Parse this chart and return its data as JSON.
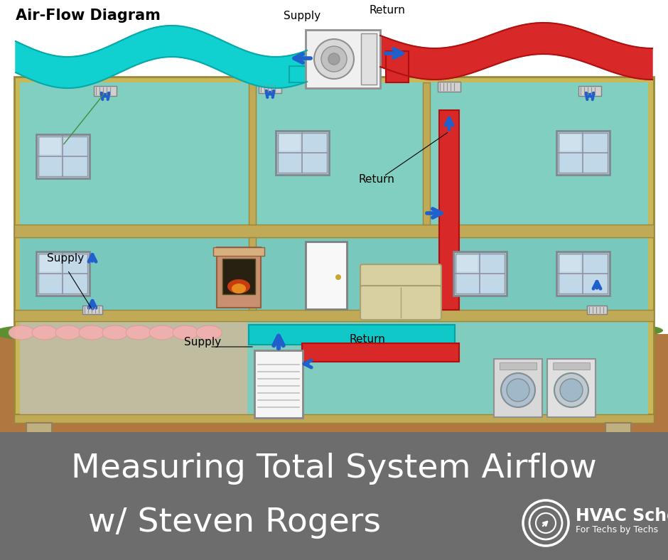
{
  "title_line1": "Measuring Total System Airflow",
  "title_line2": "w/ Steven Rogers",
  "hvac_label": "HVAC School",
  "hvac_sublabel": "For Techs by Techs",
  "diagram_label": "Air-Flow Diagram",
  "bg_color": "#ffffff",
  "footer_bg": "#6d6d6d",
  "footer_text_color": "#ffffff",
  "supply_duct_color": "#00c8c8",
  "return_duct_color": "#e03030",
  "arrow_color": "#2060cc",
  "ground_color": "#b07840",
  "grass_color": "#5a9030",
  "wall_color": "#c8b858",
  "room_upper_color": "#80cfc0",
  "room_mid_color": "#78c8be",
  "basement_color": "#80ccbe",
  "floor_color": "#c0aa58",
  "window_color": "#98c0d0",
  "crawl_color": "#c0c0a0"
}
